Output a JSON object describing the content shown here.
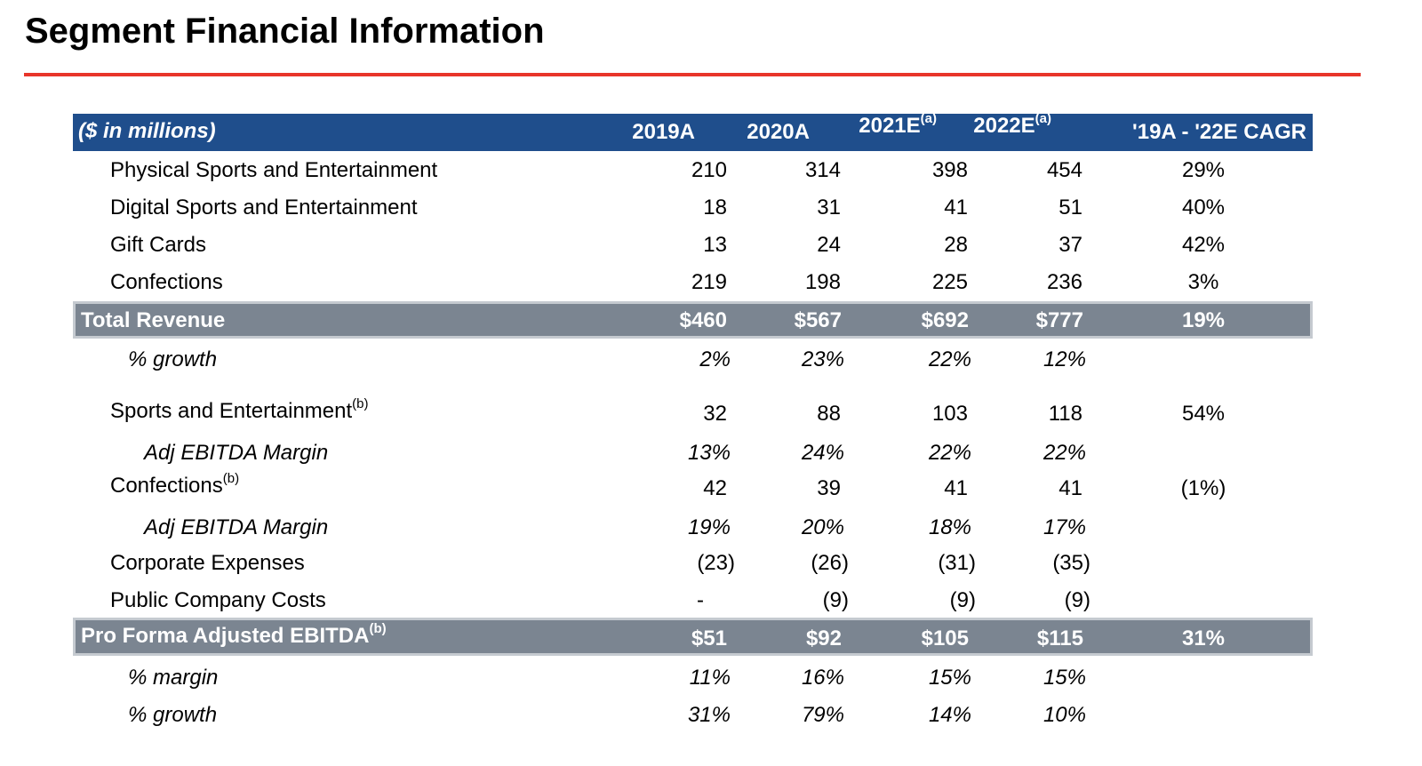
{
  "title": "Segment Financial Information",
  "colors": {
    "accent_rule": "#e8352a",
    "header_bg": "#1f4e8c",
    "total_bg": "#7b8591",
    "text": "#000000"
  },
  "table": {
    "header": {
      "label": "($ in millions)",
      "years": [
        {
          "label": "2019A",
          "sup": ""
        },
        {
          "label": "2020A",
          "sup": ""
        },
        {
          "label": "2021E",
          "sup": "(a)"
        },
        {
          "label": "2022E",
          "sup": "(a)"
        }
      ],
      "cagr_label": "'19A - '22E CAGR"
    },
    "revenue_rows": [
      {
        "label": "Physical Sports and Entertainment",
        "values": [
          "210",
          "314",
          "398",
          "454"
        ],
        "cagr": "29%"
      },
      {
        "label": "Digital Sports and Entertainment",
        "values": [
          "18",
          "31",
          "41",
          "51"
        ],
        "cagr": "40%"
      },
      {
        "label": "Gift Cards",
        "values": [
          "13",
          "24",
          "28",
          "37"
        ],
        "cagr": "42%"
      },
      {
        "label": "Confections",
        "values": [
          "219",
          "198",
          "225",
          "236"
        ],
        "cagr": "3%"
      }
    ],
    "total_revenue": {
      "label": "Total Revenue",
      "values": [
        "$460",
        "$567",
        "$692",
        "$777"
      ],
      "cagr": "19%"
    },
    "revenue_growth": {
      "label": "% growth",
      "values": [
        "2%",
        "23%",
        "22%",
        "12%"
      ]
    },
    "ebitda_rows": [
      {
        "label": "Sports and Entertainment",
        "sup": "(b)",
        "values": [
          "32",
          "88",
          "103",
          "118"
        ],
        "cagr": "54%"
      },
      {
        "label": "Adj EBITDA Margin",
        "values": [
          "13%",
          "24%",
          "22%",
          "22%"
        ]
      },
      {
        "label": "Confections",
        "sup": "(b)",
        "values": [
          "42",
          "39",
          "41",
          "41"
        ],
        "cagr": "(1%)"
      },
      {
        "label": "Adj EBITDA Margin",
        "values": [
          "19%",
          "20%",
          "18%",
          "17%"
        ]
      },
      {
        "label": "Corporate Expenses",
        "values": [
          "(23)",
          "(26)",
          "(31)",
          "(35)"
        ]
      },
      {
        "label": "Public Company Costs",
        "values": [
          "-",
          "(9)",
          "(9)",
          "(9)"
        ]
      }
    ],
    "pro_forma": {
      "label": "Pro Forma Adjusted EBITDA",
      "sup": "(b)",
      "values": [
        "$51",
        "$92",
        "$105",
        "$115"
      ],
      "cagr": "31%"
    },
    "pro_forma_margin": {
      "label": "% margin",
      "values": [
        "11%",
        "16%",
        "15%",
        "15%"
      ]
    },
    "pro_forma_growth": {
      "label": "% growth",
      "values": [
        "31%",
        "79%",
        "14%",
        "10%"
      ]
    }
  }
}
